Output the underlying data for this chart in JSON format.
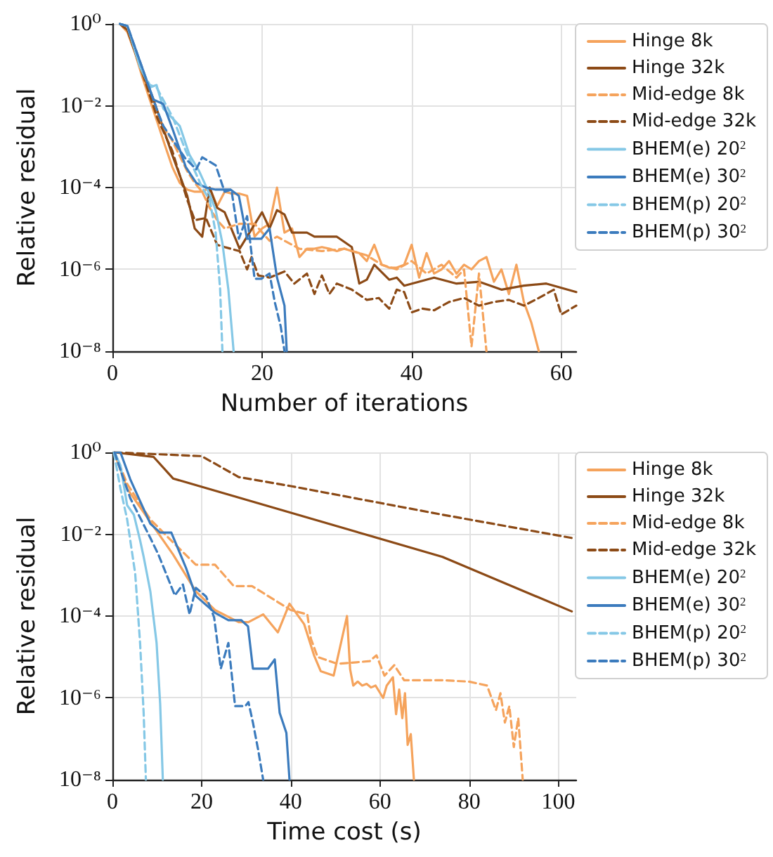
{
  "chart_data": [
    {
      "type": "line",
      "xlabel": "Number of iterations",
      "ylabel": "Relative residual",
      "log": "y",
      "grid": true,
      "legend": "top right",
      "marker": "none",
      "xlim": [
        0,
        62
      ],
      "xticks": [
        0,
        20,
        40,
        60
      ],
      "ylim": [
        1e-08,
        1
      ],
      "yticks": [
        {
          "value": 1,
          "label": "10⁰"
        },
        {
          "value": 0.01,
          "label": "10⁻²"
        },
        {
          "value": 0.0001,
          "label": "10⁻⁴"
        },
        {
          "value": 1e-06,
          "label": "10⁻⁶"
        },
        {
          "value": 1e-08,
          "label": "10⁻⁸"
        }
      ],
      "series": [
        {
          "name": "Hinge 8k",
          "color": "#f5a35c",
          "line_style": "solid",
          "x": [
            1,
            2,
            3,
            4,
            5,
            6,
            7,
            8,
            9,
            10,
            11,
            12,
            13,
            14,
            15,
            16,
            17,
            18,
            19,
            20,
            21,
            22,
            23,
            24,
            25,
            26,
            27,
            28,
            29,
            30,
            31,
            32,
            33,
            34,
            35,
            36,
            37,
            38,
            39,
            40,
            41,
            42,
            43,
            44,
            45,
            46,
            47,
            48,
            49,
            50,
            51,
            52,
            53,
            54,
            55,
            56,
            57
          ],
          "values": [
            1,
            0.63,
            0.2,
            0.05,
            0.014,
            0.004,
            0.0011,
            0.00032,
            0.00013,
            8.9e-05,
            7.9e-05,
            7.9e-05,
            0.0001,
            3.5e-05,
            7.9e-05,
            7.1e-05,
            7.1e-05,
            6.3e-05,
            6.3e-06,
            1e-05,
            1.3e-05,
            0.0001,
            7.9e-06,
            1e-05,
            2e-06,
            3.2e-06,
            3.2e-06,
            3.5e-06,
            3.2e-06,
            2.8e-06,
            3.2e-06,
            2.8e-06,
            2.5e-06,
            1.6e-06,
            4e-06,
            1.3e-06,
            1.1e-06,
            1.1e-06,
            1.3e-06,
            4e-06,
            6.3e-07,
            2.5e-06,
            7.9e-07,
            1e-06,
            1.6e-06,
            7.9e-07,
            1.3e-06,
            1e-06,
            1.6e-06,
            2e-06,
            5e-07,
            1e-06,
            2.5e-07,
            1.3e-06,
            1.6e-07,
            5e-08,
            1e-08
          ]
        },
        {
          "name": "Hinge 32k",
          "color": "#8c4a16",
          "line_style": "solid",
          "x": [
            1,
            2,
            4,
            5.5,
            8,
            10,
            11,
            12,
            13,
            14,
            15,
            17,
            20,
            21,
            22,
            23,
            24,
            26,
            27,
            30,
            32,
            33,
            34,
            35,
            37,
            38,
            39,
            41,
            43,
            46,
            49,
            52,
            55,
            58,
            62
          ],
          "values": [
            1,
            0.71,
            0.063,
            0.014,
            0.00063,
            6.3e-05,
            1e-05,
            6.3e-06,
            0.0001,
            3.2e-05,
            2.5e-05,
            3.2e-06,
            2.5e-05,
            1e-05,
            2.8e-05,
            2.2e-05,
            7.9e-06,
            7.9e-06,
            6.3e-06,
            6.3e-06,
            3.5e-06,
            4.5e-07,
            5.6e-07,
            1.3e-06,
            5.6e-07,
            6.3e-07,
            4e-07,
            5e-07,
            6.3e-07,
            4.5e-07,
            5e-07,
            3.2e-07,
            4e-07,
            4.5e-07,
            2.8e-07
          ]
        },
        {
          "name": "Mid-edge 8k",
          "color": "#f5a35c",
          "line_style": "dashed",
          "x": [
            1,
            2,
            4,
            6,
            8,
            10,
            11,
            12,
            13,
            14,
            15,
            17,
            19,
            21,
            22,
            24,
            25,
            28,
            31,
            34,
            36,
            38,
            40,
            42,
            44,
            46,
            47,
            48,
            49,
            50
          ],
          "values": [
            1,
            0.71,
            0.063,
            0.005,
            0.0014,
            0.00025,
            0.00013,
            7.9e-05,
            3.2e-05,
            1.6e-05,
            1e-05,
            1.3e-05,
            1.3e-05,
            5e-06,
            6.3e-06,
            4e-06,
            3.2e-06,
            2.8e-06,
            3.2e-06,
            2.2e-06,
            1.3e-06,
            1e-06,
            1.6e-06,
            7.9e-07,
            1.3e-06,
            6.3e-07,
            1e-06,
            1.3e-08,
            7.9e-07,
            1e-08
          ]
        },
        {
          "name": "Mid-edge 32k",
          "color": "#8c4a16",
          "line_style": "dashed",
          "x": [
            1,
            2,
            4,
            6,
            8,
            10,
            11,
            12.5,
            14,
            15,
            17,
            18,
            18.6,
            19.5,
            21,
            23,
            24.3,
            26,
            27,
            28,
            29,
            30,
            32,
            34,
            35.6,
            37,
            38,
            39,
            40,
            41.4,
            43,
            45,
            47,
            49,
            51,
            53,
            55,
            57,
            59,
            60,
            62
          ],
          "values": [
            1,
            0.71,
            0.063,
            0.005,
            0.00079,
            5e-05,
            1.6e-05,
            1.8e-05,
            4e-06,
            3.5e-06,
            2.8e-06,
            1e-06,
            2e-06,
            7.1e-07,
            6.3e-07,
            8.9e-07,
            4.5e-07,
            7.9e-07,
            2.5e-07,
            7.1e-07,
            2.5e-07,
            4.5e-07,
            3.2e-07,
            1.8e-07,
            2e-07,
            1.1e-07,
            3.2e-07,
            2.8e-07,
            8.9e-08,
            1.1e-07,
            1e-07,
            1.6e-07,
            2e-07,
            1.3e-07,
            1.6e-07,
            1.8e-07,
            1.3e-07,
            2e-07,
            3.2e-07,
            7.9e-08,
            1.3e-07
          ]
        },
        {
          "name": "BHEM(e) 20$^{2}$",
          "color": "#85c8e6",
          "line_style": "solid",
          "x": [
            1,
            2,
            3.7,
            5,
            5.9,
            6.8,
            9,
            10.3,
            11.6,
            13,
            13.8,
            14.7,
            15.5,
            16.2
          ],
          "values": [
            1,
            0.89,
            0.089,
            0.028,
            0.032,
            0.0085,
            0.0032,
            0.00063,
            0.00025,
            6.8e-05,
            2.8e-05,
            4.4e-06,
            3.2e-07,
            1e-08
          ]
        },
        {
          "name": "BHEM(e) 30$^{2}$",
          "color": "#3b7bbd",
          "line_style": "solid",
          "x": [
            1,
            2,
            5.5,
            6.8,
            8.1,
            9.8,
            11.2,
            12.5,
            13.8,
            15.8,
            16.9,
            18,
            19.9,
            21,
            22,
            23,
            23.3
          ],
          "values": [
            1,
            0.89,
            0.014,
            0.011,
            0.0025,
            0.00032,
            0.00013,
            0.0001,
            8.9e-05,
            8.9e-05,
            6.3e-05,
            5.6e-06,
            5.6e-06,
            1e-05,
            6.3e-07,
            1.3e-07,
            1e-08
          ]
        },
        {
          "name": "BHEM(p) 20$^{2}$",
          "color": "#85c8e6",
          "line_style": "dashed",
          "x": [
            1,
            2,
            3.7,
            5,
            5.9,
            8.1,
            9.8,
            12,
            13,
            13.8,
            14.4,
            14.7
          ],
          "values": [
            1,
            0.89,
            0.089,
            0.032,
            0.028,
            0.005,
            0.00079,
            0.0001,
            5e-05,
            7.9e-06,
            3.2e-07,
            1e-08
          ]
        },
        {
          "name": "BHEM(p) 30$^{2}$",
          "color": "#3b7bbd",
          "line_style": "dashed",
          "x": [
            1,
            2,
            4.6,
            5.9,
            6.8,
            8.1,
            9.8,
            11.2,
            12,
            13.8,
            15,
            15.9,
            16.9,
            18,
            19,
            19.9,
            21,
            21.7,
            22.5,
            23
          ],
          "values": [
            1,
            0.89,
            0.04,
            0.0085,
            0.0032,
            0.0014,
            0.0005,
            0.00028,
            0.00055,
            0.00035,
            7.9e-05,
            8.9e-05,
            5.6e-06,
            2e-05,
            5.9e-07,
            5.9e-07,
            7.9e-07,
            1.6e-07,
            4e-08,
            1e-08
          ]
        }
      ]
    },
    {
      "type": "line",
      "xlabel": "Time cost (s)",
      "ylabel": "Relative residual",
      "log": "y",
      "grid": true,
      "legend": "top right",
      "marker": "none",
      "xlim": [
        0,
        104
      ],
      "xticks": [
        0,
        20,
        40,
        60,
        80,
        100
      ],
      "ylim": [
        1e-08,
        1
      ],
      "yticks": [
        {
          "value": 1,
          "label": "10⁰"
        },
        {
          "value": 0.01,
          "label": "10⁻²"
        },
        {
          "value": 0.0001,
          "label": "10⁻⁴"
        },
        {
          "value": 1e-06,
          "label": "10⁻⁶"
        },
        {
          "value": 1e-08,
          "label": "10⁻⁸"
        }
      ],
      "series": [
        {
          "name": "Hinge 8k",
          "color": "#f5a35c",
          "line_style": "solid",
          "x": [
            0.4,
            3.3,
            8.5,
            13.6,
            18.7,
            23,
            28.3,
            30.5,
            33.8,
            37.1,
            39.7,
            43,
            45.2,
            46.7,
            49.6,
            52.6,
            53.3,
            54,
            55,
            56,
            57,
            58,
            59,
            60.7,
            61.5,
            62.9,
            63.6,
            64.3,
            65,
            65.6,
            66.2,
            66.9,
            67.6
          ],
          "values": [
            1,
            0.13,
            0.02,
            0.0032,
            0.0004,
            0.00014,
            7.1e-05,
            7.1e-05,
            0.00011,
            4e-05,
            0.0002,
            6.3e-05,
            1.1e-05,
            4.5e-06,
            3.5e-06,
            0.0001,
            5e-06,
            2e-06,
            2.5e-06,
            2e-06,
            2.2e-06,
            1.8e-06,
            2e-06,
            1e-06,
            2e-06,
            3.2e-06,
            4e-07,
            1.6e-06,
            3.2e-07,
            1.3e-06,
            7.1e-08,
            1.3e-07,
            1e-08
          ]
        },
        {
          "name": "Hinge 32k",
          "color": "#8c4a16",
          "line_style": "solid",
          "x": [
            0.5,
            9.2,
            13.6,
            74,
            103
          ],
          "values": [
            1,
            0.78,
            0.23,
            0.0028,
            0.00013
          ]
        },
        {
          "name": "Mid-edge 8k",
          "color": "#f5a35c",
          "line_style": "dashed",
          "x": [
            0.5,
            3.3,
            8.5,
            13.6,
            18.7,
            23,
            27.2,
            31.3,
            40,
            43.7,
            44.5,
            46,
            50.4,
            57.7,
            59.2,
            61,
            63.2,
            65.4,
            74,
            80,
            84,
            86,
            87,
            88,
            89,
            90,
            91,
            92
          ],
          "values": [
            1,
            0.17,
            0.023,
            0.0063,
            0.0018,
            0.0018,
            0.00054,
            0.00054,
            0.00014,
            0.00011,
            2.8e-05,
            1e-05,
            6.8e-06,
            7.9e-06,
            1.1e-05,
            3.5e-06,
            6.3e-06,
            2.7e-06,
            2.7e-06,
            2.5e-06,
            2e-06,
            5e-07,
            1.3e-06,
            2.5e-07,
            6.3e-07,
            6.3e-08,
            3.2e-07,
            1e-08
          ]
        },
        {
          "name": "Mid-edge 32k",
          "color": "#8c4a16",
          "line_style": "dashed",
          "x": [
            0.5,
            20,
            28.3,
            40,
            74,
            103
          ],
          "values": [
            1,
            0.81,
            0.25,
            0.15,
            0.03,
            0.0081
          ]
        },
        {
          "name": "BHEM(e) 20$^{2}$",
          "color": "#85c8e6",
          "line_style": "solid",
          "x": [
            0.5,
            1.8,
            3.3,
            4.8,
            6.2,
            7,
            8.5,
            9.9,
            10.7,
            11.3
          ],
          "values": [
            1,
            0.48,
            0.051,
            0.03,
            0.0071,
            0.0028,
            0.0004,
            2.2e-05,
            7.2e-07,
            1e-08
          ]
        },
        {
          "name": "BHEM(e) 30$^{2}$",
          "color": "#3b7bbd",
          "line_style": "solid",
          "x": [
            1,
            1.8,
            4,
            8.5,
            10.7,
            13.2,
            16.5,
            18.7,
            23,
            26,
            28.9,
            30.4,
            31.5,
            34.9,
            36.4,
            37.5,
            39,
            39.7
          ],
          "values": [
            1,
            1,
            0.22,
            0.018,
            0.011,
            0.011,
            0.0015,
            0.00031,
            0.00012,
            7.9e-05,
            7.9e-05,
            5.6e-05,
            5.2e-06,
            5.2e-06,
            8.7e-06,
            4.3e-07,
            1.4e-07,
            1e-08
          ]
        },
        {
          "name": "BHEM(p) 20$^{2}$",
          "color": "#85c8e6",
          "line_style": "dashed",
          "x": [
            0.3,
            1.8,
            3.3,
            5.1,
            6.2,
            7,
            7.5
          ],
          "values": [
            1,
            0.13,
            0.023,
            0.0011,
            2.2e-05,
            4.3e-07,
            1e-08
          ]
        },
        {
          "name": "BHEM(p) 30$^{2}$",
          "color": "#3b7bbd",
          "line_style": "dashed",
          "x": [
            0.5,
            1.8,
            4,
            8.5,
            10.3,
            14,
            15.8,
            17.3,
            18.7,
            21,
            22.8,
            24.3,
            26,
            27.5,
            29.8,
            30.5,
            31.5,
            32.7,
            33.8
          ],
          "values": [
            1,
            0.37,
            0.076,
            0.0081,
            0.0032,
            0.00032,
            0.00059,
            0.00011,
            0.00049,
            0.0003,
            9.3e-05,
            5.2e-06,
            2.2e-05,
            6.3e-07,
            6.3e-07,
            7.9e-07,
            2.5e-07,
            5.2e-08,
            1e-08
          ]
        }
      ]
    }
  ]
}
